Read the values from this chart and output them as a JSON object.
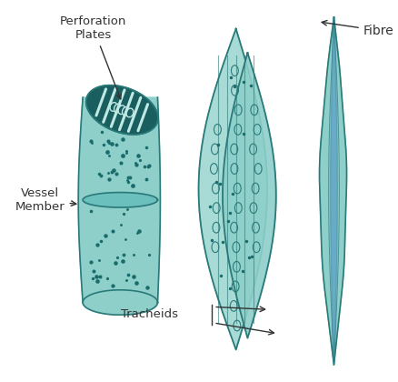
{
  "bg_color": "#ffffff",
  "teal_fill": "#8ecfca",
  "teal_fill2": "#a8dbd6",
  "teal_dark": "#2a7a7a",
  "teal_mid": "#5aadad",
  "teal_very_dark": "#1a5f5f",
  "teal_light": "#c0e8e4",
  "teal_inner": "#6bbfbc",
  "dot_color": "#1a6b6b",
  "blue_line": "#4488bb",
  "text_color": "#333333",
  "labels": {
    "perforation_plates": "Perforation\nPlates",
    "vessel_member": "Vessel\nMember",
    "tracheids": "Tracheids",
    "fibre": "Fibre"
  }
}
